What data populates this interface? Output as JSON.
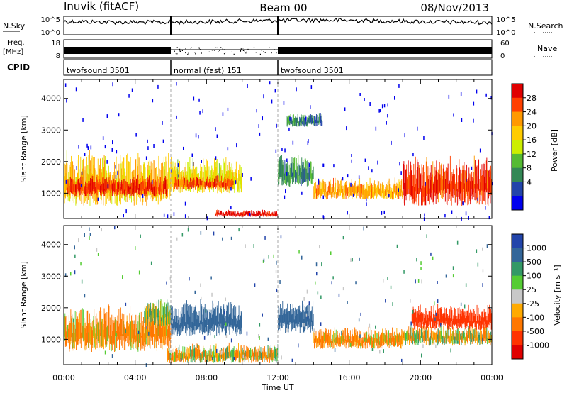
{
  "header": {
    "station": "Inuvik (fitACF)",
    "beam": "Beam 00",
    "date": "08/Nov/2013"
  },
  "panels": {
    "nsky": {
      "label": "N.Sky",
      "ticks": [
        "10^5",
        "10^0"
      ],
      "right_label": "N.Search",
      "right_ticks": [
        "10^5",
        "10^0"
      ]
    },
    "freq": {
      "label_line1": "Freq.",
      "label_line2": "[MHz]",
      "ticks": [
        "18",
        "8"
      ],
      "right_label": "Nave",
      "right_ticks": [
        "60",
        "0"
      ]
    },
    "cpid": {
      "label": "CPID",
      "segments": [
        {
          "name": "twofsound 3501",
          "start": 0.0,
          "end": 6.0
        },
        {
          "name": "normal (fast) 151",
          "start": 6.0,
          "end": 12.0
        },
        {
          "name": "twofsound 3501",
          "start": 12.0,
          "end": 24.0
        }
      ]
    }
  },
  "power_scale": {
    "label": "Power [dB]",
    "ticks": [
      "28",
      "24",
      "20",
      "16",
      "12",
      "8",
      "4"
    ],
    "colors": [
      "#e00000",
      "#ff4000",
      "#ff9900",
      "#ffcc00",
      "#ccee00",
      "#55bb33",
      "#338855",
      "#2244aa",
      "#0000ee"
    ]
  },
  "velocity_scale": {
    "label": "Velocity [m s⁻¹]",
    "ticks": [
      "1000",
      "500",
      "100",
      "25",
      "-25",
      "-100",
      "-500",
      "-1000"
    ],
    "colors": [
      "#2244aa",
      "#336699",
      "#339966",
      "#55cc33",
      "#c8c8c8",
      "#ffaa00",
      "#ff7700",
      "#ff3300",
      "#e00000"
    ]
  },
  "chart_data": [
    {
      "type": "heatmap",
      "title": "Power",
      "xlabel": "Time UT",
      "ylabel": "Slant Range [km]",
      "x_ticks": [
        "00:00",
        "04:00",
        "08:00",
        "12:00",
        "16:00",
        "20:00",
        "00:00"
      ],
      "y_ticks": [
        "4000",
        "3000",
        "2000",
        "1000"
      ],
      "xlim_hours": [
        0,
        24
      ],
      "ylim_km": [
        200,
        4600
      ],
      "colorbar_label": "Power [dB]",
      "regions": [
        {
          "t0": 0.0,
          "t1": 6.0,
          "r0": 600,
          "r1": 2100,
          "value_db": 18
        },
        {
          "t0": 0.2,
          "t1": 5.8,
          "r0": 900,
          "r1": 1500,
          "value_db": 26
        },
        {
          "t0": 6.0,
          "t1": 10.0,
          "r0": 1000,
          "r1": 2000,
          "value_db": 16
        },
        {
          "t0": 6.2,
          "t1": 9.5,
          "r0": 1100,
          "r1": 1500,
          "value_db": 24
        },
        {
          "t0": 8.5,
          "t1": 12.0,
          "r0": 250,
          "r1": 450,
          "value_db": 28
        },
        {
          "t0": 12.0,
          "t1": 14.0,
          "r0": 1200,
          "r1": 2100,
          "value_db": 8
        },
        {
          "t0": 14.0,
          "t1": 19.0,
          "r0": 800,
          "r1": 1400,
          "value_db": 20
        },
        {
          "t0": 19.0,
          "t1": 24.0,
          "r0": 600,
          "r1": 2000,
          "value_db": 26
        },
        {
          "t0": 12.5,
          "t1": 14.5,
          "r0": 3100,
          "r1": 3500,
          "value_db": 6
        }
      ]
    },
    {
      "type": "heatmap",
      "title": "Velocity",
      "xlabel": "Time UT",
      "ylabel": "Slant Range [km]",
      "x_ticks": [
        "00:00",
        "04:00",
        "08:00",
        "12:00",
        "16:00",
        "20:00",
        "00:00"
      ],
      "y_ticks": [
        "4000",
        "3000",
        "2000",
        "1000"
      ],
      "xlim_hours": [
        0,
        24
      ],
      "ylim_km": [
        200,
        4600
      ],
      "colorbar_label": "Velocity [m s⁻¹]",
      "regions": [
        {
          "t0": 0.0,
          "t1": 6.0,
          "r0": 600,
          "r1": 1900,
          "value_ms": -100
        },
        {
          "t0": 4.5,
          "t1": 6.0,
          "r0": 1400,
          "r1": 2200,
          "value_ms": 100
        },
        {
          "t0": 6.0,
          "t1": 10.0,
          "r0": 1100,
          "r1": 2100,
          "value_ms": 500
        },
        {
          "t0": 5.8,
          "t1": 12.0,
          "r0": 250,
          "r1": 800,
          "value_ms": 0
        },
        {
          "t0": 12.0,
          "t1": 14.0,
          "r0": 1200,
          "r1": 2100,
          "value_ms": 500
        },
        {
          "t0": 14.0,
          "t1": 19.0,
          "r0": 700,
          "r1": 1300,
          "value_ms": -100
        },
        {
          "t0": 19.0,
          "t1": 24.0,
          "r0": 800,
          "r1": 1400,
          "value_ms": 0
        },
        {
          "t0": 19.5,
          "t1": 24.0,
          "r0": 1300,
          "r1": 2000,
          "value_ms": -500
        }
      ]
    }
  ]
}
